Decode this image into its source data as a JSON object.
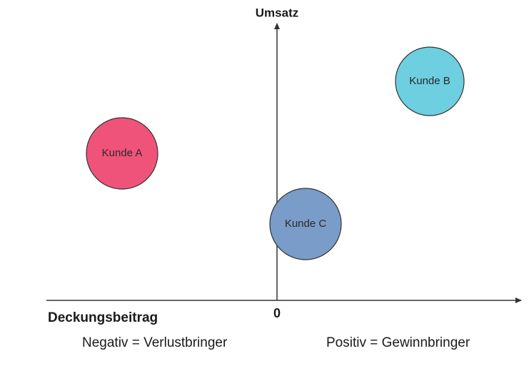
{
  "axes": {
    "y_label": "Umsatz",
    "x_label": "Deckungsbeitrag",
    "origin": "0",
    "negative_note": "Negativ = Verlustbringer",
    "positive_note": "Positiv = Gewinnbringer"
  },
  "nodes": [
    {
      "label": "Kunde A"
    },
    {
      "label": "Kunde B"
    },
    {
      "label": "Kunde C"
    }
  ]
}
